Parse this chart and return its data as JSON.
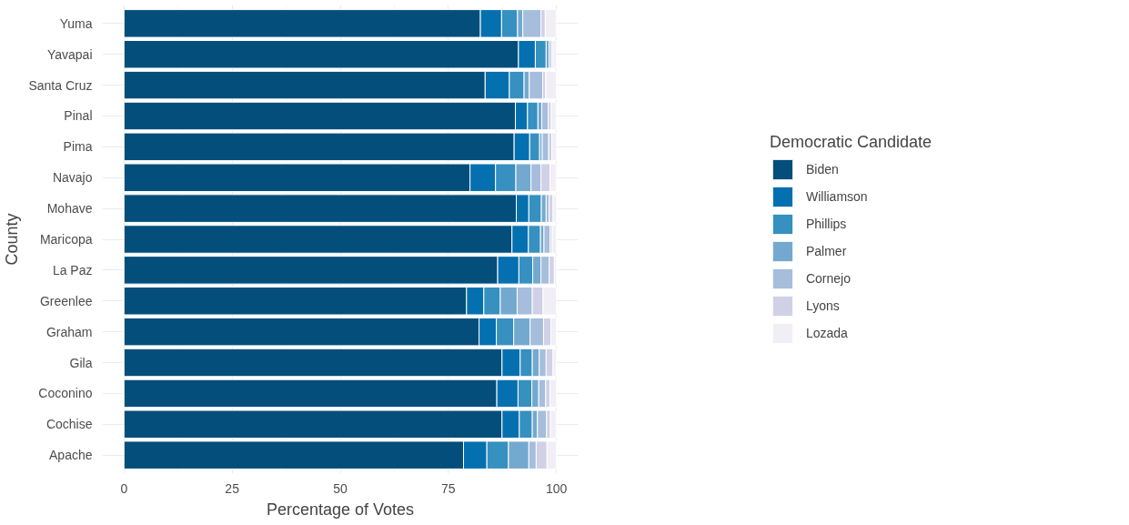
{
  "chart_data": {
    "type": "bar",
    "orientation": "horizontal",
    "stacked": true,
    "xlabel": "Percentage of Votes",
    "ylabel": "County",
    "legend_title": "Democratic Candidate",
    "legend": "right",
    "grid": true,
    "categories": [
      "Yuma",
      "Yavapai",
      "Santa Cruz",
      "Pinal",
      "Pima",
      "Navajo",
      "Mohave",
      "Maricopa",
      "La Paz",
      "Greenlee",
      "Graham",
      "Gila",
      "Coconino",
      "Cochise",
      "Apache"
    ],
    "xlim": [
      -5,
      105
    ],
    "xticks": [
      0,
      25,
      50,
      75,
      100
    ],
    "series": [
      {
        "name": "Biden",
        "color": "#034e7b",
        "values": [
          82.4,
          91.2,
          83.5,
          90.5,
          90.2,
          80.0,
          90.7,
          89.7,
          86.4,
          79.2,
          82.1,
          87.4,
          86.2,
          87.4,
          78.5
        ]
      },
      {
        "name": "Williamson",
        "color": "#0570b0",
        "values": [
          4.9,
          3.9,
          5.6,
          2.8,
          3.6,
          5.9,
          2.9,
          3.8,
          4.9,
          4.0,
          4.0,
          4.2,
          4.9,
          4.0,
          5.4
        ]
      },
      {
        "name": "Phillips",
        "color": "#3690c0",
        "values": [
          3.7,
          2.5,
          3.4,
          2.4,
          2.3,
          4.7,
          2.9,
          2.8,
          3.2,
          3.8,
          4.0,
          2.8,
          3.2,
          3.0,
          5.0
        ]
      },
      {
        "name": "Palmer",
        "color": "#74a9cf",
        "values": [
          1.2,
          0.7,
          1.2,
          0.9,
          0.6,
          3.5,
          1.1,
          0.8,
          1.9,
          3.9,
          3.8,
          1.6,
          1.6,
          1.2,
          4.7
        ]
      },
      {
        "name": "Cornejo",
        "color": "#a6bddb",
        "values": [
          4.2,
          0.5,
          3.1,
          1.5,
          1.5,
          2.3,
          0.7,
          1.4,
          1.9,
          3.5,
          3.1,
          1.6,
          1.6,
          2.1,
          1.7
        ]
      },
      {
        "name": "Lyons",
        "color": "#d0d1e6",
        "values": [
          1.0,
          0.4,
          0.7,
          0.7,
          0.7,
          2.1,
          0.9,
          0.5,
          1.2,
          2.5,
          1.7,
          1.6,
          1.0,
          0.9,
          2.5
        ]
      },
      {
        "name": "Lozada",
        "color": "#f1eef6",
        "values": [
          2.5,
          0.7,
          2.5,
          1.1,
          1.1,
          1.4,
          0.8,
          1.0,
          0.5,
          3.1,
          1.3,
          0.7,
          1.5,
          1.3,
          2.2
        ]
      }
    ]
  }
}
